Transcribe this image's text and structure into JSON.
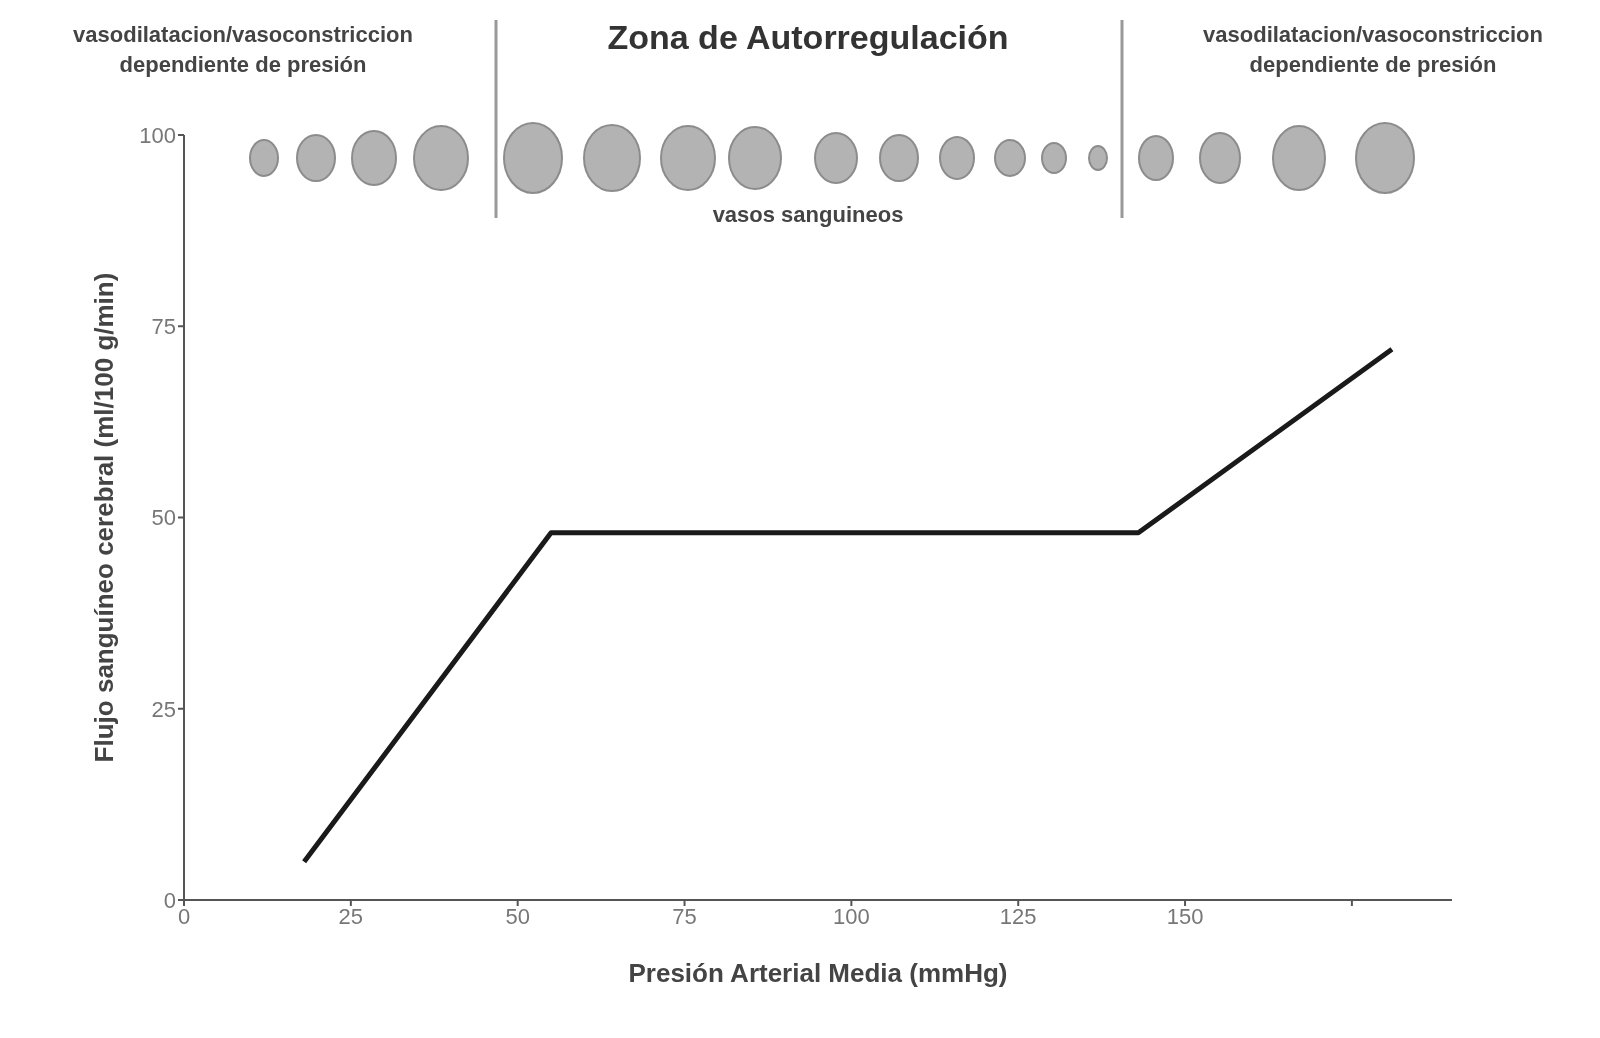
{
  "chart_data": {
    "type": "line",
    "title": "Zona de Autorregulación",
    "xlabel": "Presión Arterial Media (mmHg)",
    "ylabel": "Flujo sanguíneo cerebral (ml/100 g/min)",
    "annotations": [
      "vasodilatacion/vasoconstriccion dependiente de presión",
      "vasodilatacion/vasoconstriccion dependiente de presión",
      "vasos sanguineos"
    ],
    "x": [
      18,
      55,
      143,
      181
    ],
    "series": [
      {
        "color": "#1a1a1a",
        "values": [
          5,
          48,
          48,
          72
        ]
      }
    ],
    "xlim": [
      0,
      190
    ],
    "xticks": [
      0,
      25,
      50,
      75,
      100,
      125,
      150,
      {
        "value": 175,
        "label": null
      }
    ],
    "ylim": [
      0,
      100
    ],
    "yticks": [
      0,
      25,
      50,
      75,
      100
    ],
    "grid": false,
    "legend": false,
    "marker": "none",
    "line_style": "solid"
  }
}
